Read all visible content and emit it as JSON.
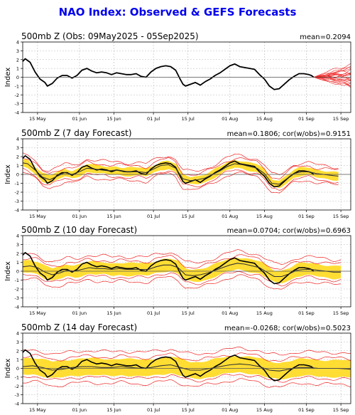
{
  "title": "NAO Index: Observed & GEFS Forecasts",
  "colors": {
    "title": "#0000ee",
    "observed": "#000000",
    "members": "#ee2222",
    "spread": "#ffdd33",
    "zero_line": "#555555",
    "grid": "#bbbbbb"
  },
  "chart_data": [
    {
      "type": "line",
      "title": "500mb Z (Obs: 09May2025 - 05Sep2025)",
      "stats": "mean=0.2094",
      "ylabel": "Index",
      "ylim": [
        -4,
        4
      ],
      "yticks": [
        4,
        3,
        2,
        1,
        0,
        -1,
        -2,
        -3,
        -4
      ],
      "xlim": [
        0,
        133
      ],
      "xticks": [
        {
          "label": "15 May",
          "x": 6
        },
        {
          "label": "01 Jun",
          "x": 23
        },
        {
          "label": "15 Jun",
          "x": 37
        },
        {
          "label": "01 Jul",
          "x": 53
        },
        {
          "label": "15 Jul",
          "x": 67
        },
        {
          "label": "01 Aug",
          "x": 84
        },
        {
          "label": "15 Aug",
          "x": 98
        },
        {
          "label": "01 Sep",
          "x": 115
        },
        {
          "label": "15 Sep",
          "x": 129
        }
      ],
      "grid": true,
      "observed": [
        [
          0,
          1.8
        ],
        [
          1,
          2.1
        ],
        [
          3,
          1.7
        ],
        [
          5,
          0.6
        ],
        [
          7,
          -0.2
        ],
        [
          9,
          -0.6
        ],
        [
          10,
          -1.0
        ],
        [
          12,
          -0.7
        ],
        [
          14,
          -0.1
        ],
        [
          16,
          0.2
        ],
        [
          18,
          0.2
        ],
        [
          20,
          -0.1
        ],
        [
          22,
          0.2
        ],
        [
          24,
          0.8
        ],
        [
          26,
          1.0
        ],
        [
          28,
          0.7
        ],
        [
          30,
          0.5
        ],
        [
          32,
          0.6
        ],
        [
          34,
          0.5
        ],
        [
          36,
          0.3
        ],
        [
          38,
          0.5
        ],
        [
          40,
          0.4
        ],
        [
          42,
          0.3
        ],
        [
          44,
          0.3
        ],
        [
          46,
          0.4
        ],
        [
          48,
          0.1
        ],
        [
          50,
          0.0
        ],
        [
          52,
          0.6
        ],
        [
          54,
          1.0
        ],
        [
          56,
          1.2
        ],
        [
          58,
          1.3
        ],
        [
          60,
          1.2
        ],
        [
          62,
          0.8
        ],
        [
          64,
          -0.3
        ],
        [
          65,
          -0.8
        ],
        [
          66,
          -1.0
        ],
        [
          68,
          -0.8
        ],
        [
          70,
          -0.6
        ],
        [
          72,
          -0.9
        ],
        [
          74,
          -0.5
        ],
        [
          76,
          -0.2
        ],
        [
          78,
          0.2
        ],
        [
          80,
          0.5
        ],
        [
          82,
          0.9
        ],
        [
          84,
          1.3
        ],
        [
          86,
          1.5
        ],
        [
          88,
          1.2
        ],
        [
          90,
          1.1
        ],
        [
          92,
          1.0
        ],
        [
          94,
          0.9
        ],
        [
          96,
          0.3
        ],
        [
          98,
          -0.2
        ],
        [
          100,
          -1.0
        ],
        [
          102,
          -1.4
        ],
        [
          104,
          -1.3
        ],
        [
          106,
          -0.8
        ],
        [
          108,
          -0.3
        ],
        [
          110,
          0.1
        ],
        [
          112,
          0.4
        ],
        [
          114,
          0.4
        ],
        [
          116,
          0.3
        ],
        [
          117,
          0.2
        ],
        [
          118,
          0.0
        ]
      ],
      "forecast_start": 118,
      "forecast_end": 133,
      "member_end_values": [
        1.6,
        1.2,
        0.9,
        0.7,
        0.5,
        0.3,
        0.2,
        0.0,
        -0.1,
        -0.3,
        -0.5,
        -0.7,
        -0.9,
        -1.2,
        1.0,
        -0.4,
        0.6,
        -1.0,
        0.4,
        -0.2
      ]
    },
    {
      "type": "line",
      "title": "500mb Z (7 day Forecast)",
      "stats": "mean=0.1806; cor(w/obs)=0.9151",
      "ylabel": "Index",
      "ylim": [
        -4,
        4
      ],
      "yticks": [
        4,
        3,
        2,
        1,
        0,
        -1,
        -2,
        -3,
        -4
      ],
      "xlim": [
        0,
        133
      ],
      "xticks": [
        {
          "label": "15 May",
          "x": 6
        },
        {
          "label": "01 Jun",
          "x": 23
        },
        {
          "label": "15 Jun",
          "x": 37
        },
        {
          "label": "01 Jul",
          "x": 53
        },
        {
          "label": "15 Jul",
          "x": 67
        },
        {
          "label": "01 Aug",
          "x": 84
        },
        {
          "label": "15 Aug",
          "x": 98
        },
        {
          "label": "01 Sep",
          "x": 115
        },
        {
          "label": "15 Sep",
          "x": 129
        }
      ],
      "grid": true,
      "forecast_mean": [
        [
          0,
          1.3
        ],
        [
          2,
          1.2
        ],
        [
          5,
          0.5
        ],
        [
          8,
          -0.3
        ],
        [
          11,
          -0.6
        ],
        [
          14,
          -0.2
        ],
        [
          17,
          0.2
        ],
        [
          20,
          0.0
        ],
        [
          23,
          0.3
        ],
        [
          26,
          0.7
        ],
        [
          29,
          0.6
        ],
        [
          32,
          0.5
        ],
        [
          35,
          0.4
        ],
        [
          38,
          0.5
        ],
        [
          41,
          0.3
        ],
        [
          44,
          0.3
        ],
        [
          47,
          0.3
        ],
        [
          50,
          0.2
        ],
        [
          53,
          0.6
        ],
        [
          56,
          1.0
        ],
        [
          59,
          1.1
        ],
        [
          62,
          0.7
        ],
        [
          65,
          -0.5
        ],
        [
          68,
          -0.7
        ],
        [
          71,
          -0.6
        ],
        [
          74,
          -0.4
        ],
        [
          77,
          0.0
        ],
        [
          80,
          0.4
        ],
        [
          83,
          0.9
        ],
        [
          86,
          1.2
        ],
        [
          89,
          1.1
        ],
        [
          92,
          0.9
        ],
        [
          95,
          0.7
        ],
        [
          98,
          0.1
        ],
        [
          101,
          -1.0
        ],
        [
          104,
          -1.1
        ],
        [
          107,
          -0.5
        ],
        [
          110,
          0.1
        ],
        [
          113,
          0.3
        ],
        [
          116,
          0.3
        ],
        [
          119,
          0.1
        ],
        [
          122,
          0.0
        ],
        [
          125,
          -0.1
        ],
        [
          128,
          -0.2
        ]
      ],
      "spread_half_width": 0.45,
      "outer_half_width": 1.0
    },
    {
      "type": "line",
      "title": "500mb Z (10 day Forecast)",
      "stats": "mean=0.0704; cor(w/obs)=0.6963",
      "ylabel": "Index",
      "ylim": [
        -4,
        4
      ],
      "yticks": [
        4,
        3,
        2,
        1,
        0,
        -1,
        -2,
        -3,
        -4
      ],
      "xlim": [
        0,
        133
      ],
      "xticks": [
        {
          "label": "15 May",
          "x": 6
        },
        {
          "label": "01 Jun",
          "x": 23
        },
        {
          "label": "15 Jun",
          "x": 37
        },
        {
          "label": "01 Jul",
          "x": 53
        },
        {
          "label": "15 Jul",
          "x": 67
        },
        {
          "label": "01 Aug",
          "x": 84
        },
        {
          "label": "15 Aug",
          "x": 98
        },
        {
          "label": "01 Sep",
          "x": 115
        },
        {
          "label": "15 Sep",
          "x": 129
        }
      ],
      "grid": true,
      "forecast_mean": [
        [
          0,
          0.5
        ],
        [
          3,
          0.6
        ],
        [
          6,
          0.4
        ],
        [
          9,
          -0.1
        ],
        [
          12,
          -0.4
        ],
        [
          15,
          -0.2
        ],
        [
          18,
          0.1
        ],
        [
          21,
          0.0
        ],
        [
          24,
          0.2
        ],
        [
          27,
          0.4
        ],
        [
          30,
          0.3
        ],
        [
          33,
          0.3
        ],
        [
          36,
          0.2
        ],
        [
          39,
          0.3
        ],
        [
          42,
          0.2
        ],
        [
          45,
          0.2
        ],
        [
          48,
          0.2
        ],
        [
          51,
          0.2
        ],
        [
          54,
          0.5
        ],
        [
          57,
          0.7
        ],
        [
          60,
          0.7
        ],
        [
          63,
          0.4
        ],
        [
          66,
          -0.4
        ],
        [
          69,
          -0.5
        ],
        [
          72,
          -0.4
        ],
        [
          75,
          -0.2
        ],
        [
          78,
          0.1
        ],
        [
          81,
          0.4
        ],
        [
          84,
          0.7
        ],
        [
          87,
          0.9
        ],
        [
          90,
          0.8
        ],
        [
          93,
          0.6
        ],
        [
          96,
          0.4
        ],
        [
          99,
          -0.1
        ],
        [
          102,
          -0.6
        ],
        [
          105,
          -0.6
        ],
        [
          108,
          -0.3
        ],
        [
          111,
          0.1
        ],
        [
          114,
          0.2
        ],
        [
          117,
          0.2
        ],
        [
          120,
          0.1
        ],
        [
          123,
          0.0
        ],
        [
          126,
          -0.1
        ],
        [
          129,
          -0.1
        ]
      ],
      "spread_half_width": 0.7,
      "outer_half_width": 1.4
    },
    {
      "type": "line",
      "title": "500mb Z (14 day Forecast)",
      "stats": "mean=-0.0268; cor(w/obs)=0.5023",
      "ylabel": "Index",
      "ylim": [
        -4,
        4
      ],
      "yticks": [
        4,
        3,
        2,
        1,
        0,
        -1,
        -2,
        -3,
        -4
      ],
      "xlim": [
        0,
        133
      ],
      "xticks": [
        {
          "label": "15 May",
          "x": 6
        },
        {
          "label": "01 Jun",
          "x": 23
        },
        {
          "label": "15 Jun",
          "x": 37
        },
        {
          "label": "01 Jul",
          "x": 53
        },
        {
          "label": "15 Jul",
          "x": 67
        },
        {
          "label": "01 Aug",
          "x": 84
        },
        {
          "label": "15 Aug",
          "x": 98
        },
        {
          "label": "01 Sep",
          "x": 115
        },
        {
          "label": "15 Sep",
          "x": 129
        }
      ],
      "grid": true,
      "forecast_mean": [
        [
          0,
          0.2
        ],
        [
          4,
          0.3
        ],
        [
          8,
          0.1
        ],
        [
          12,
          -0.2
        ],
        [
          16,
          -0.1
        ],
        [
          20,
          0.1
        ],
        [
          24,
          0.2
        ],
        [
          28,
          0.2
        ],
        [
          32,
          0.1
        ],
        [
          36,
          0.1
        ],
        [
          40,
          0.2
        ],
        [
          44,
          0.1
        ],
        [
          48,
          0.0
        ],
        [
          52,
          0.1
        ],
        [
          56,
          0.3
        ],
        [
          60,
          0.4
        ],
        [
          64,
          0.1
        ],
        [
          68,
          -0.2
        ],
        [
          72,
          -0.2
        ],
        [
          76,
          0.0
        ],
        [
          80,
          0.2
        ],
        [
          84,
          0.4
        ],
        [
          88,
          0.5
        ],
        [
          92,
          0.4
        ],
        [
          96,
          0.2
        ],
        [
          100,
          -0.2
        ],
        [
          104,
          -0.3
        ],
        [
          108,
          -0.1
        ],
        [
          112,
          0.1
        ],
        [
          116,
          0.1
        ],
        [
          120,
          0.0
        ],
        [
          124,
          0.0
        ],
        [
          128,
          0.0
        ],
        [
          133,
          -0.1
        ]
      ],
      "spread_half_width": 0.95,
      "outer_half_width": 1.8
    }
  ]
}
